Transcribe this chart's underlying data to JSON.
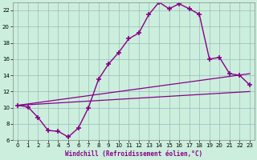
{
  "xlabel": "Windchill (Refroidissement éolien,°C)",
  "background_color": "#cceedd",
  "line_color": "#880088",
  "grid_color": "#99bbbb",
  "xlim": [
    -0.5,
    23.5
  ],
  "ylim": [
    6,
    23
  ],
  "yticks": [
    6,
    8,
    10,
    12,
    14,
    16,
    18,
    20,
    22
  ],
  "xticks": [
    0,
    1,
    2,
    3,
    4,
    5,
    6,
    7,
    8,
    9,
    10,
    11,
    12,
    13,
    14,
    15,
    16,
    17,
    18,
    19,
    20,
    21,
    22,
    23
  ],
  "main_x": [
    0,
    1,
    2,
    3,
    4,
    5,
    6,
    7,
    8,
    9,
    10,
    11,
    12,
    13,
    14,
    15,
    16,
    17,
    18,
    19,
    20,
    21,
    22,
    23
  ],
  "main_y": [
    10.3,
    10.1,
    8.8,
    7.2,
    7.1,
    6.4,
    7.5,
    10.0,
    13.5,
    15.4,
    16.8,
    18.5,
    19.2,
    21.5,
    23.0,
    22.2,
    22.8,
    22.2,
    21.5,
    16.0,
    16.2,
    14.2,
    14.0,
    12.8
  ],
  "trend1_x": [
    0,
    23
  ],
  "trend1_y": [
    10.3,
    14.2
  ],
  "trend2_x": [
    0,
    23
  ],
  "trend2_y": [
    10.3,
    12.0
  ],
  "marker": "+",
  "linewidth": 1.0,
  "trend_linewidth": 0.9,
  "markersize": 4
}
